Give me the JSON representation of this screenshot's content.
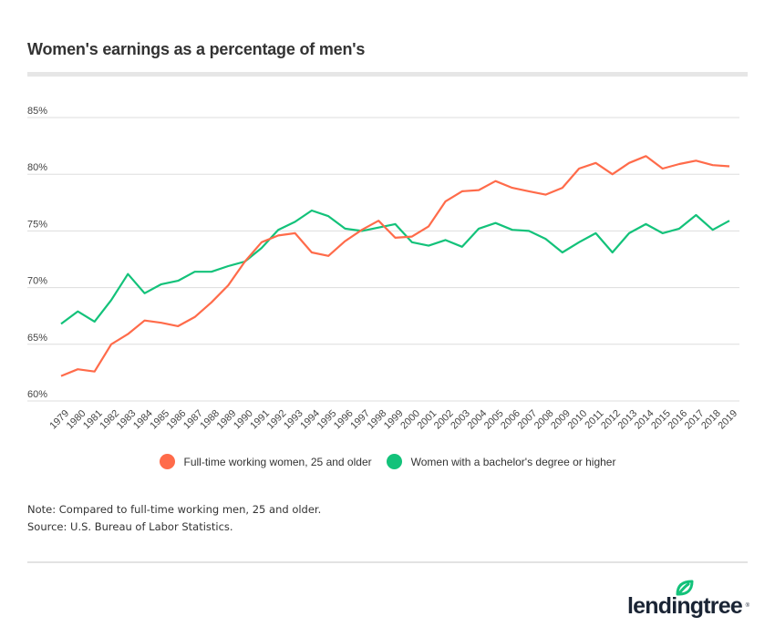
{
  "header": {
    "title": "Women's earnings as a percentage of men's"
  },
  "chart_data": {
    "type": "line",
    "title": "Women's earnings as a percentage of men's",
    "xlabel": "",
    "ylabel": "",
    "ylim": [
      60,
      85
    ],
    "yticks": [
      60,
      65,
      70,
      75,
      80,
      85
    ],
    "ytick_labels": [
      "60%",
      "65%",
      "70%",
      "75%",
      "80%",
      "85%"
    ],
    "grid": true,
    "legend_position": "bottom-center",
    "x": [
      "1979",
      "1980",
      "1981",
      "1982",
      "1983",
      "1984",
      "1985",
      "1986",
      "1987",
      "1988",
      "1989",
      "1990",
      "1991",
      "1992",
      "1993",
      "1994",
      "1995",
      "1996",
      "1997",
      "1998",
      "1999",
      "2000",
      "2001",
      "2002",
      "2003",
      "2004",
      "2005",
      "2006",
      "2007",
      "2008",
      "2009",
      "2010",
      "2011",
      "2012",
      "2013",
      "2014",
      "2015",
      "2016",
      "2017",
      "2018",
      "2019"
    ],
    "series": [
      {
        "name": "Full-time working women, 25 and older",
        "color": "#FF6B4A",
        "values": [
          62.2,
          62.8,
          62.6,
          65.0,
          65.9,
          67.1,
          66.9,
          66.6,
          67.4,
          68.7,
          70.2,
          72.3,
          74.0,
          74.6,
          74.8,
          73.1,
          72.8,
          74.1,
          75.1,
          75.9,
          74.4,
          74.5,
          75.4,
          77.6,
          78.5,
          78.6,
          79.4,
          78.8,
          78.5,
          78.2,
          78.8,
          80.5,
          81.0,
          80.0,
          81.0,
          81.6,
          80.5,
          80.9,
          81.2,
          80.8,
          80.7
        ]
      },
      {
        "name": "Women with a bachelor's degree or higher",
        "color": "#13C27A",
        "values": [
          66.8,
          67.9,
          67.0,
          68.9,
          71.2,
          69.5,
          70.3,
          70.6,
          71.4,
          71.4,
          71.9,
          72.3,
          73.5,
          75.1,
          75.8,
          76.8,
          76.3,
          75.2,
          75.0,
          75.3,
          75.6,
          74.0,
          73.7,
          74.2,
          73.6,
          75.2,
          75.7,
          75.1,
          75.0,
          74.3,
          73.1,
          74.0,
          74.8,
          73.1,
          74.8,
          75.6,
          74.8,
          75.2,
          76.4,
          75.1,
          75.9
        ]
      }
    ]
  },
  "legend": {
    "items": [
      {
        "label": "Full-time working women, 25 and older",
        "color": "#FF6B4A"
      },
      {
        "label": "Women with a bachelor's degree or higher",
        "color": "#13C27A"
      }
    ]
  },
  "notes": {
    "note": "Note: Compared to full-time working men, 25 and older.",
    "source": "Source: U.S. Bureau of Labor Statistics."
  },
  "brand": {
    "logo_text": "lendingtree",
    "logo_mark": "®",
    "leaf_color": "#13C27A"
  }
}
